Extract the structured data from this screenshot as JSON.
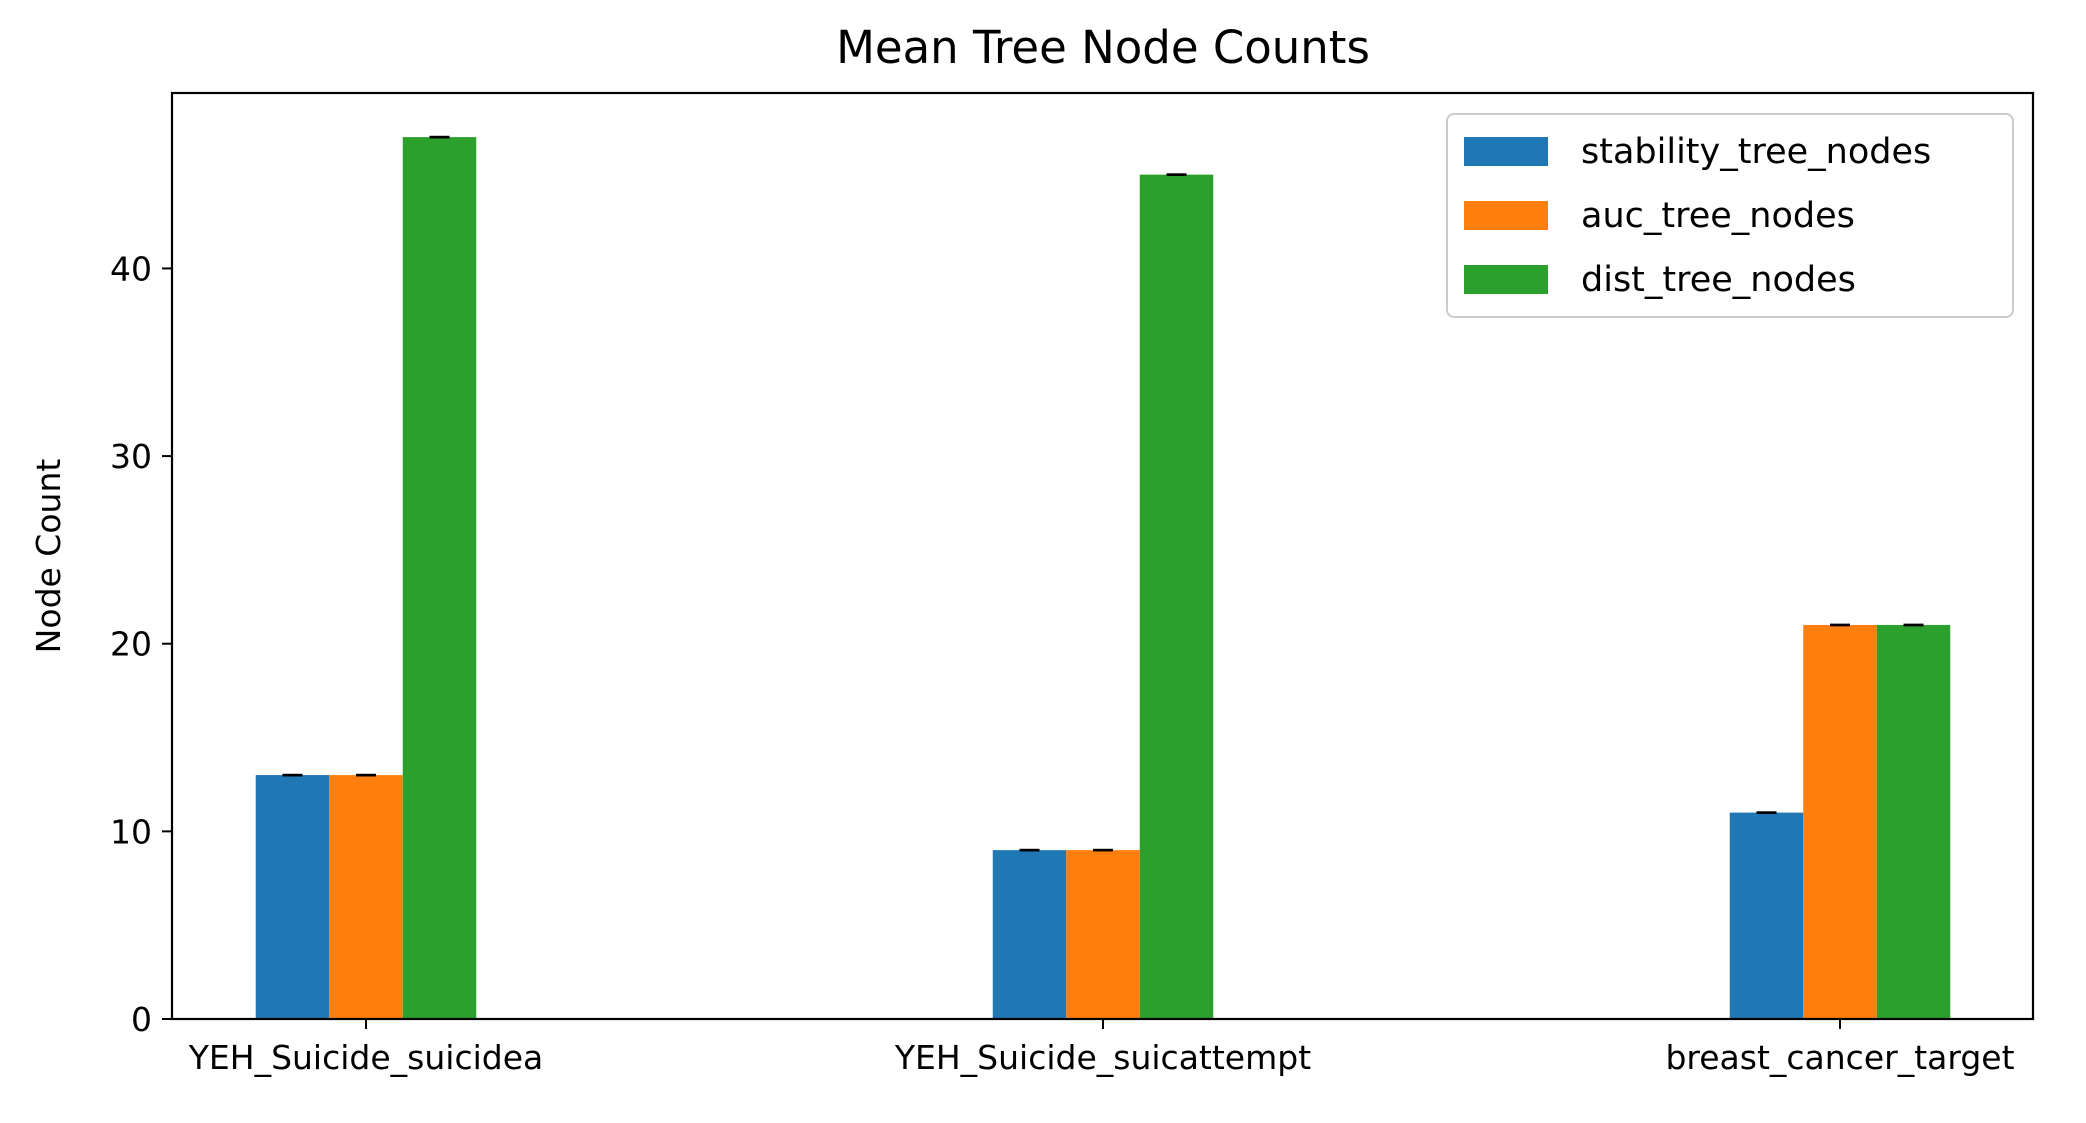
{
  "chart_data": {
    "type": "bar",
    "title": "Mean Tree Node Counts",
    "xlabel": "",
    "ylabel": "Node Count",
    "categories": [
      "YEH_Suicide_suicidea",
      "YEH_Suicide_suicattempt",
      "breast_cancer_target"
    ],
    "series": [
      {
        "name": "stability_tree_nodes",
        "color": "#1f77b4",
        "values": [
          13,
          9,
          11
        ],
        "errors": [
          0,
          0,
          0
        ]
      },
      {
        "name": "auc_tree_nodes",
        "color": "#ff7f0e",
        "values": [
          13,
          9,
          21
        ],
        "errors": [
          0,
          0,
          0
        ]
      },
      {
        "name": "dist_tree_nodes",
        "color": "#2ca02c",
        "values": [
          47,
          45,
          21
        ],
        "errors": [
          0,
          0,
          0
        ]
      }
    ],
    "ylim": [
      0,
      49.35
    ],
    "yticks": [
      0,
      10,
      20,
      30,
      40
    ],
    "grid": false,
    "legend_position": "top-right",
    "error_bars": true
  }
}
